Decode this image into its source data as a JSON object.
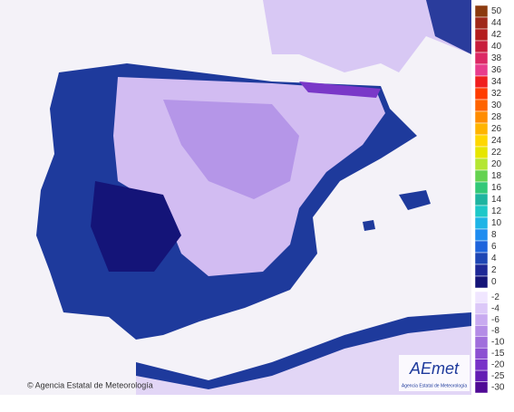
{
  "legend": {
    "entries": [
      {
        "label": "50",
        "color": "#8b3a0f"
      },
      {
        "label": "44",
        "color": "#a0281a"
      },
      {
        "label": "42",
        "color": "#b41e1e"
      },
      {
        "label": "40",
        "color": "#c81e3c"
      },
      {
        "label": "38",
        "color": "#dc2864"
      },
      {
        "label": "36",
        "color": "#e83c8c"
      },
      {
        "label": "34",
        "color": "#f01e1e"
      },
      {
        "label": "32",
        "color": "#ff3c00"
      },
      {
        "label": "30",
        "color": "#ff6400"
      },
      {
        "label": "28",
        "color": "#ff8c00"
      },
      {
        "label": "26",
        "color": "#ffb400"
      },
      {
        "label": "24",
        "color": "#ffd700"
      },
      {
        "label": "22",
        "color": "#e6e600"
      },
      {
        "label": "20",
        "color": "#b4e632"
      },
      {
        "label": "18",
        "color": "#64d250"
      },
      {
        "label": "16",
        "color": "#32c878"
      },
      {
        "label": "14",
        "color": "#1eb4a0"
      },
      {
        "label": "12",
        "color": "#1ec8c8"
      },
      {
        "label": "10",
        "color": "#1eb4e6"
      },
      {
        "label": "8",
        "color": "#1e8cf0"
      },
      {
        "label": "6",
        "color": "#1e64dc"
      },
      {
        "label": "4",
        "color": "#1e46b4"
      },
      {
        "label": "2",
        "color": "#1e2896"
      },
      {
        "label": "0",
        "color": "#141478"
      }
    ],
    "negative_entries": [
      {
        "label": "-2",
        "color": "#f0e6ff"
      },
      {
        "label": "-4",
        "color": "#dcc8f8"
      },
      {
        "label": "-6",
        "color": "#c8aaf0"
      },
      {
        "label": "-8",
        "color": "#b48ce6"
      },
      {
        "label": "-10",
        "color": "#a06edc"
      },
      {
        "label": "-15",
        "color": "#8c50d2"
      },
      {
        "label": "-20",
        "color": "#7832c8"
      },
      {
        "label": "-25",
        "color": "#641eb4"
      },
      {
        "label": "-30",
        "color": "#500a96"
      }
    ]
  },
  "footer": {
    "copyright": "© Agencia Estatal de Meteorología"
  },
  "logo": {
    "name": "AEmet",
    "subtitle": "Agencia Estatal de Meteorología"
  }
}
